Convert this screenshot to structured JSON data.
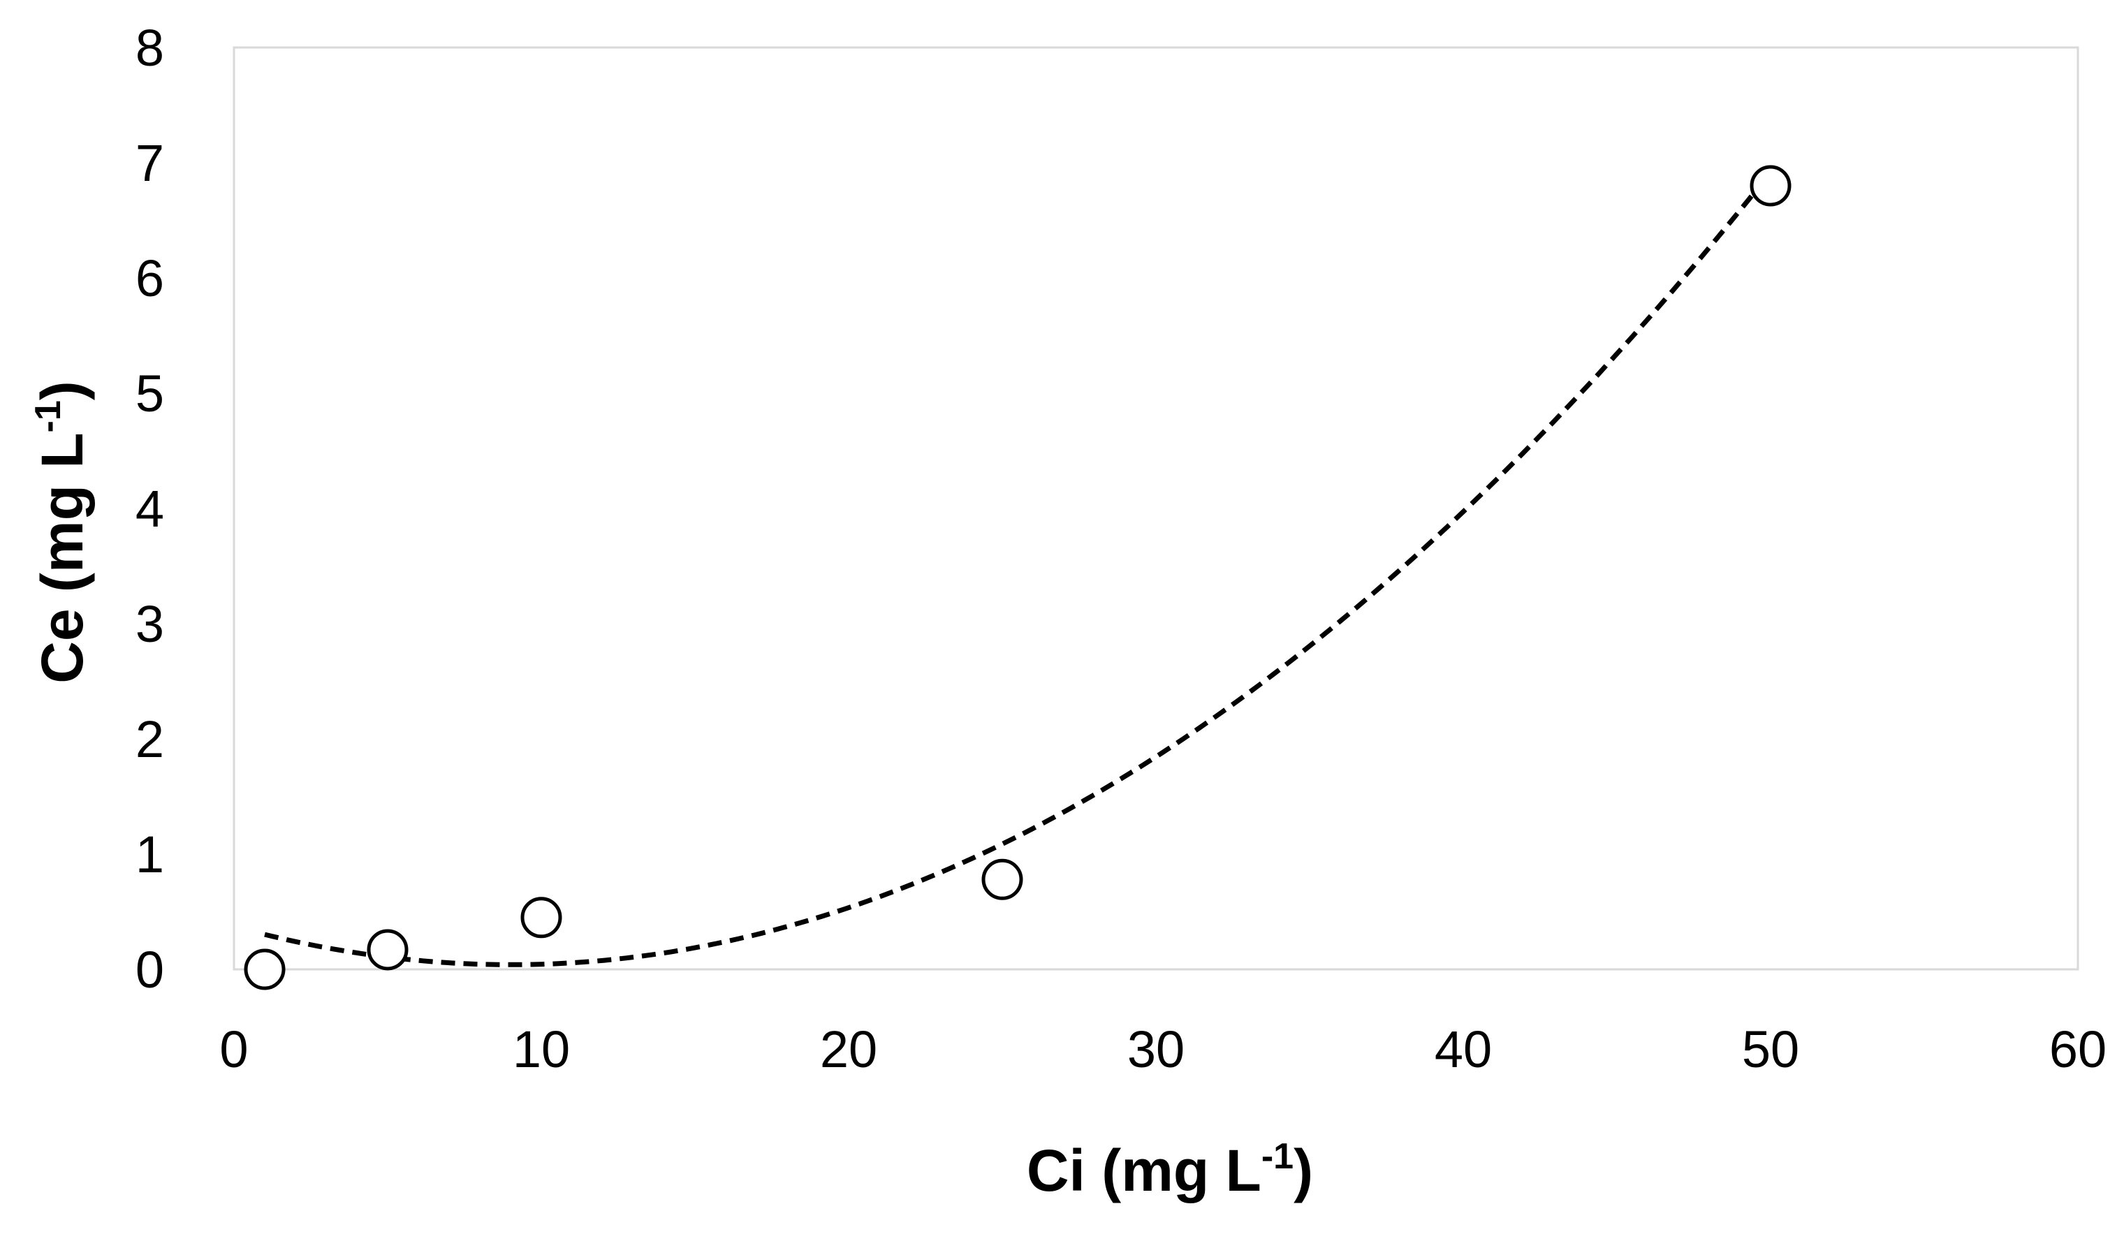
{
  "chart_data": {
    "type": "scatter",
    "title": "",
    "xlabel": {
      "main": "Ci (mg L",
      "sup": "-1",
      "close": ")"
    },
    "ylabel": {
      "main": "Ce (mg L",
      "sup": "-1",
      "close": ")"
    },
    "xlim": [
      0,
      60
    ],
    "ylim": [
      0,
      8
    ],
    "x_ticks": [
      "0",
      "10",
      "20",
      "30",
      "40",
      "50",
      "60"
    ],
    "y_ticks": [
      "0",
      "1",
      "2",
      "3",
      "4",
      "5",
      "6",
      "7",
      "8"
    ],
    "grid": false,
    "legend": "none",
    "series": [
      {
        "marker": "open-circle",
        "points": [
          {
            "x": 1,
            "y": 0.0
          },
          {
            "x": 5,
            "y": 0.17
          },
          {
            "x": 10,
            "y": 0.45
          },
          {
            "x": 25,
            "y": 0.78
          },
          {
            "x": 50,
            "y": 6.8
          }
        ]
      }
    ],
    "trendline": {
      "style": "dashed",
      "type": "polynomial-2",
      "x_range": [
        1,
        50
      ],
      "coefficients": {
        "a": 0.004091,
        "b": -0.07365,
        "c": 0.3719
      }
    },
    "colors": {
      "marker": "#000000",
      "trendline": "#000000",
      "plot_border": "#d9d9d9",
      "text": "#000000"
    }
  }
}
